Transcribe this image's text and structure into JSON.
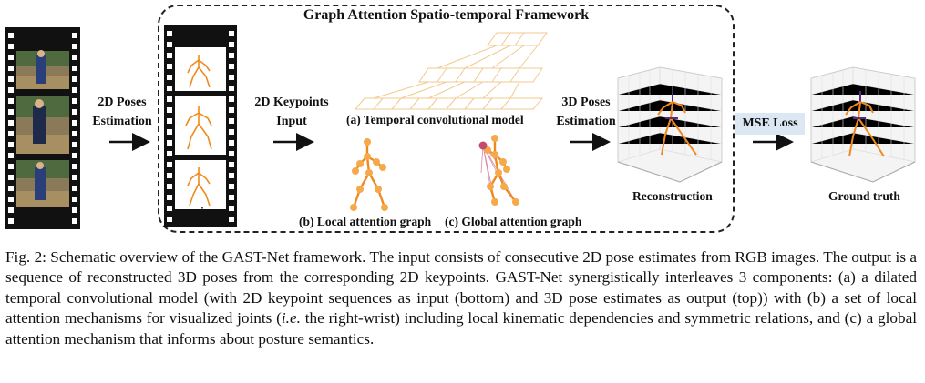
{
  "figure": {
    "framework_title": "Graph Attention Spatio-temporal Framework",
    "step1": {
      "line1": "2D Poses",
      "line2": "Estimation"
    },
    "step2": {
      "line1": "2D Keypoints",
      "line2": "Input"
    },
    "step3": {
      "line1": "3D Poses",
      "line2": "Estimation"
    },
    "temporal_label": "(a) Temporal convolutional model",
    "local_label": "(b) Local attention graph",
    "global_label": "(c) Global attention graph",
    "mse_label": "MSE Loss",
    "reconstruction_label": "Reconstruction",
    "ground_truth_label": "Ground truth",
    "ellipsis": "⋮",
    "colors": {
      "skeleton": "#f08a1e",
      "joint": "#f5a94a",
      "attention": "#c64b6a",
      "mse_box": "#dbe7f3",
      "pose3d_purple": "#5a2a8a"
    }
  },
  "caption": {
    "prefix": "Fig. 2: Schematic overview of the GAST-Net framework. The input consists of consecutive 2D pose estimates from RGB images. The output is a sequence of reconstructed 3D poses from the corresponding 2D keypoints. GAST-Net synergistically interleaves 3 components: (a) a dilated temporal convolutional model (with 2D keypoint sequences as input (bottom) and 3D pose estimates as output (top)) with (b) a set of local attention mechanisms for visualized joints (",
    "ie": "i.e.",
    "suffix": " the right-wrist) including local kinematic dependencies and symmetric relations, and (c) a global attention mechanism that informs about posture semantics."
  }
}
